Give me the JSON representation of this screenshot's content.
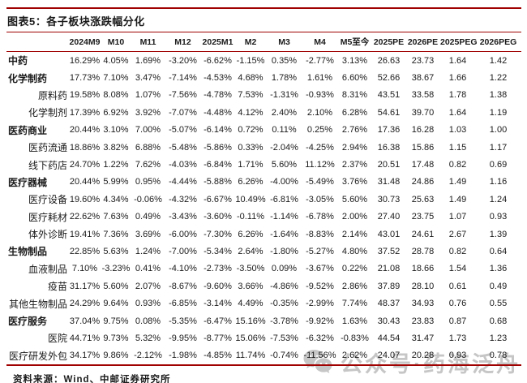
{
  "exhibit": {
    "title": "图表5：各子板块涨跌幅分化"
  },
  "table": {
    "label_column_header": "",
    "columns": [
      "2024M9",
      "M10",
      "M11",
      "M12",
      "2025M1",
      "M2",
      "M3",
      "M4",
      "M5至今",
      "2025PE",
      "2026PE",
      "2025PEG",
      "2026PEG"
    ],
    "rows": [
      {
        "label": "中药",
        "level": 0,
        "values": [
          "16.29%",
          "4.05%",
          "1.69%",
          "-3.20%",
          "-6.62%",
          "-1.15%",
          "0.35%",
          "-2.77%",
          "3.13%",
          "26.63",
          "23.73",
          "1.64",
          "1.42"
        ]
      },
      {
        "label": "化学制药",
        "level": 0,
        "values": [
          "17.73%",
          "7.10%",
          "3.47%",
          "-7.14%",
          "-4.53%",
          "4.68%",
          "1.78%",
          "1.61%",
          "6.60%",
          "52.66",
          "38.67",
          "1.66",
          "1.22"
        ]
      },
      {
        "label": "原料药",
        "level": 1,
        "values": [
          "19.58%",
          "8.08%",
          "1.07%",
          "-7.56%",
          "-4.78%",
          "7.53%",
          "-1.31%",
          "-0.93%",
          "8.31%",
          "43.51",
          "33.58",
          "1.78",
          "1.38"
        ]
      },
      {
        "label": "化学制剂",
        "level": 1,
        "values": [
          "17.39%",
          "6.92%",
          "3.92%",
          "-7.07%",
          "-4.48%",
          "4.12%",
          "2.40%",
          "2.10%",
          "6.28%",
          "54.61",
          "39.70",
          "1.64",
          "1.19"
        ]
      },
      {
        "label": "医药商业",
        "level": 0,
        "values": [
          "20.44%",
          "3.10%",
          "7.00%",
          "-5.07%",
          "-6.14%",
          "0.72%",
          "0.11%",
          "0.25%",
          "2.76%",
          "17.36",
          "16.28",
          "1.03",
          "1.00"
        ]
      },
      {
        "label": "医药流通",
        "level": 1,
        "values": [
          "18.86%",
          "3.82%",
          "6.88%",
          "-5.48%",
          "-5.86%",
          "0.33%",
          "-2.04%",
          "-4.25%",
          "2.94%",
          "16.38",
          "15.86",
          "1.15",
          "1.17"
        ]
      },
      {
        "label": "线下药店",
        "level": 1,
        "values": [
          "24.70%",
          "1.22%",
          "7.62%",
          "-4.03%",
          "-6.84%",
          "1.71%",
          "5.60%",
          "11.12%",
          "2.37%",
          "20.51",
          "17.48",
          "0.82",
          "0.69"
        ]
      },
      {
        "label": "医疗器械",
        "level": 0,
        "values": [
          "20.44%",
          "5.99%",
          "0.95%",
          "-4.44%",
          "-5.88%",
          "6.26%",
          "-4.00%",
          "-5.49%",
          "3.76%",
          "31.48",
          "24.86",
          "1.49",
          "1.16"
        ]
      },
      {
        "label": "医疗设备",
        "level": 1,
        "values": [
          "19.60%",
          "4.34%",
          "-0.06%",
          "-4.32%",
          "-6.67%",
          "10.49%",
          "-6.81%",
          "-3.05%",
          "5.60%",
          "30.73",
          "25.63",
          "1.49",
          "1.24"
        ]
      },
      {
        "label": "医疗耗材",
        "level": 1,
        "values": [
          "22.62%",
          "7.63%",
          "0.49%",
          "-3.43%",
          "-3.60%",
          "-0.11%",
          "-1.14%",
          "-6.78%",
          "2.00%",
          "27.40",
          "23.75",
          "1.07",
          "0.93"
        ]
      },
      {
        "label": "体外诊断",
        "level": 1,
        "values": [
          "19.41%",
          "7.36%",
          "3.69%",
          "-6.00%",
          "-7.30%",
          "6.26%",
          "-1.64%",
          "-8.83%",
          "2.14%",
          "43.01",
          "24.61",
          "2.67",
          "1.39"
        ]
      },
      {
        "label": "生物制品",
        "level": 0,
        "values": [
          "22.85%",
          "5.63%",
          "1.24%",
          "-7.00%",
          "-5.34%",
          "2.64%",
          "-1.80%",
          "-5.27%",
          "4.80%",
          "37.52",
          "28.78",
          "0.82",
          "0.64"
        ]
      },
      {
        "label": "血液制品",
        "level": 1,
        "values": [
          "7.10%",
          "-3.23%",
          "0.41%",
          "-4.10%",
          "-2.73%",
          "-3.50%",
          "0.09%",
          "-3.67%",
          "0.22%",
          "21.08",
          "18.66",
          "1.54",
          "1.36"
        ]
      },
      {
        "label": "疫苗",
        "level": 1,
        "values": [
          "31.17%",
          "5.60%",
          "2.07%",
          "-8.67%",
          "-9.60%",
          "3.66%",
          "-4.86%",
          "-9.52%",
          "2.86%",
          "37.89",
          "28.10",
          "0.61",
          "0.49"
        ]
      },
      {
        "label": "其他生物制品",
        "level": 1,
        "values": [
          "24.29%",
          "9.64%",
          "0.93%",
          "-6.85%",
          "-3.14%",
          "4.49%",
          "-0.35%",
          "-2.99%",
          "7.74%",
          "48.37",
          "34.93",
          "0.76",
          "0.55"
        ]
      },
      {
        "label": "医疗服务",
        "level": 0,
        "values": [
          "37.04%",
          "9.75%",
          "0.08%",
          "-5.35%",
          "-6.47%",
          "15.16%",
          "-3.78%",
          "-9.92%",
          "1.63%",
          "30.43",
          "23.83",
          "0.87",
          "0.68"
        ]
      },
      {
        "label": "医院",
        "level": 1,
        "values": [
          "44.71%",
          "9.73%",
          "5.32%",
          "-9.95%",
          "-8.77%",
          "15.06%",
          "-7.53%",
          "-6.32%",
          "-0.83%",
          "44.54",
          "31.47",
          "1.73",
          "1.23"
        ]
      },
      {
        "label": "医疗研发外包",
        "level": 1,
        "values": [
          "34.17%",
          "9.86%",
          "-2.12%",
          "-1.98%",
          "-4.85%",
          "11.74%",
          "-0.74%",
          "-11.56%",
          "2.62%",
          "24.07",
          "20.28",
          "0.93",
          "0.78"
        ]
      }
    ]
  },
  "footer": {
    "source": "资料来源：Wind、中邮证券研究所"
  },
  "watermark": {
    "text": "公众号·药海泛舟"
  },
  "colors": {
    "rule": "#a00000",
    "watermark": "#c6c6c6"
  }
}
